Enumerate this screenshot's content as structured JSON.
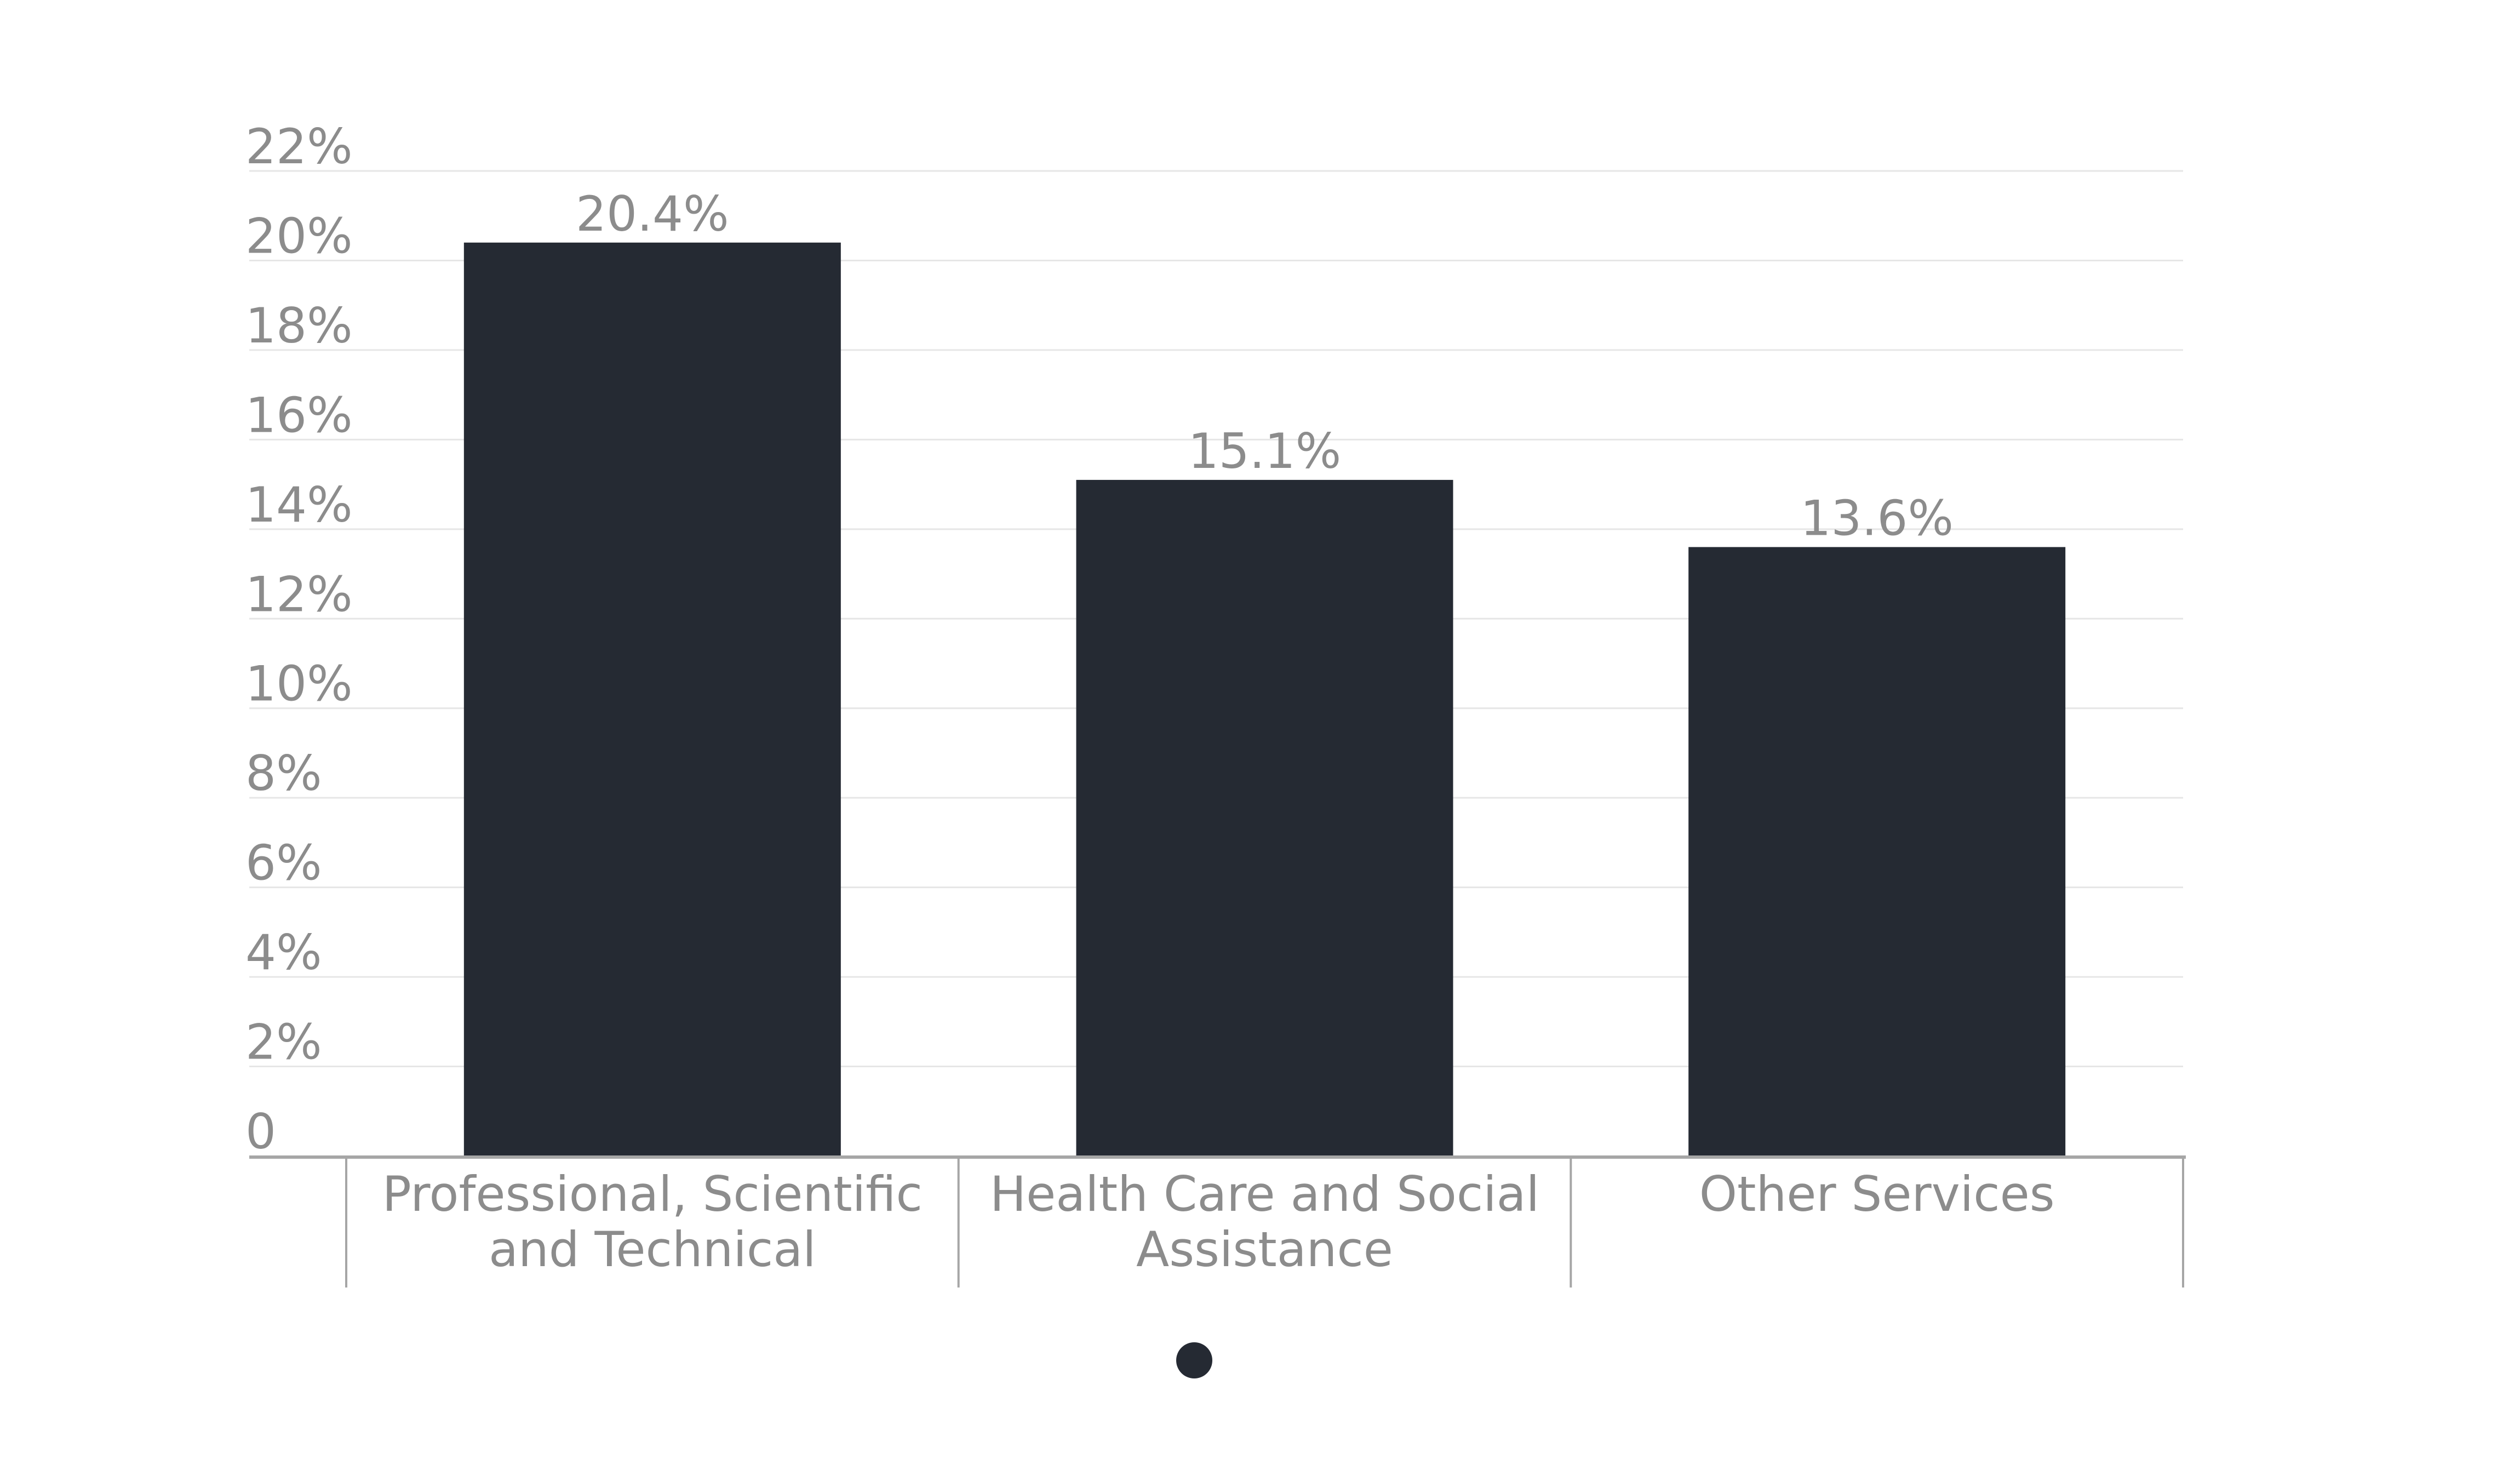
{
  "chart_data": {
    "type": "bar",
    "title": "",
    "xlabel": "",
    "ylabel": "",
    "categories": [
      "Professional, Scientific and Technical",
      "Health Care and Social Assistance",
      "Other Services"
    ],
    "category_lines": [
      [
        "Professional, Scientific",
        "and Technical"
      ],
      [
        "Health Care and Social",
        "Assistance"
      ],
      [
        "Other Services"
      ]
    ],
    "values": [
      20.4,
      15.1,
      13.6
    ],
    "value_labels": [
      "20.4%",
      "15.1%",
      "13.6%"
    ],
    "ylim": [
      0,
      22
    ],
    "yticks": [
      0,
      2,
      4,
      6,
      8,
      10,
      12,
      14,
      16,
      18,
      20,
      22
    ],
    "ytick_labels": [
      "0",
      "2%",
      "4%",
      "6%",
      "8%",
      "10%",
      "12%",
      "14%",
      "16%",
      "18%",
      "20%",
      "22%"
    ],
    "grid": true,
    "legend": "bottom-center",
    "colors": {
      "bar": "#252a33",
      "grid": "#e6e6e6",
      "axis": "#a6a6a6",
      "text": "#8c8c8c",
      "legend_marker": "#252a33"
    }
  }
}
